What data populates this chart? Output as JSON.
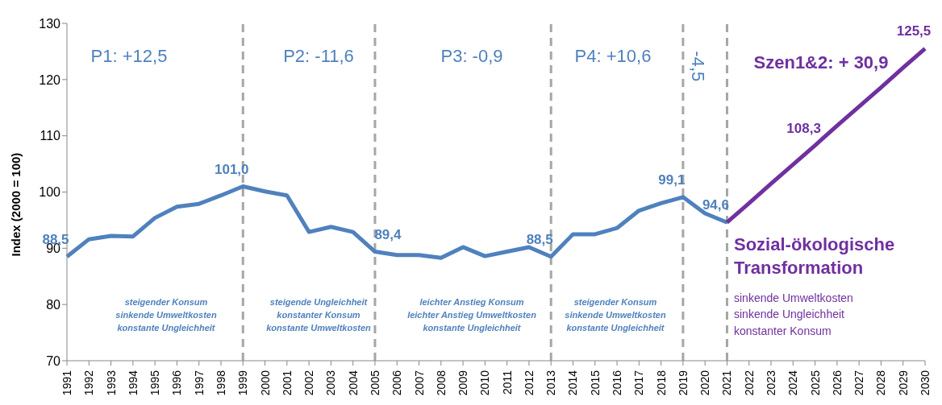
{
  "chart_data": {
    "type": "line",
    "ylabel": "Index (2000 = 100)",
    "categories": [
      "1991",
      "1992",
      "1993",
      "1994",
      "1995",
      "1996",
      "1997",
      "1998",
      "1999",
      "2000",
      "2001",
      "2002",
      "2003",
      "2004",
      "2005",
      "2006",
      "2007",
      "2008",
      "2009",
      "2010",
      "2011",
      "2012",
      "2013",
      "2014",
      "2015",
      "2016",
      "2017",
      "2018",
      "2019",
      "2020",
      "2021",
      "2022",
      "2023",
      "2024",
      "2025",
      "2026",
      "2027",
      "2028",
      "2029",
      "2030"
    ],
    "series": [
      {
        "color": "#4f81bd",
        "values": [
          88.5,
          91.6,
          92.2,
          92.1,
          95.4,
          97.4,
          97.9,
          99.4,
          101.0,
          100.1,
          99.4,
          92.9,
          93.8,
          92.9,
          89.4,
          88.8,
          88.8,
          88.3,
          90.2,
          88.6,
          89.4,
          90.2,
          88.5,
          92.5,
          92.5,
          93.6,
          96.7,
          98.0,
          99.1,
          96.2,
          94.6,
          null,
          null,
          null,
          null,
          null,
          null,
          null,
          null,
          null
        ],
        "value_labels": [
          "88,5",
          null,
          null,
          null,
          null,
          null,
          null,
          null,
          "101,0",
          null,
          null,
          null,
          null,
          null,
          "89,4",
          null,
          null,
          null,
          null,
          null,
          null,
          null,
          "88,5",
          null,
          null,
          null,
          null,
          null,
          "99,1",
          null,
          "94,6",
          null,
          null,
          null,
          null,
          null,
          null,
          null,
          null,
          null
        ]
      },
      {
        "color": "#7030a0",
        "values": [
          null,
          null,
          null,
          null,
          null,
          null,
          null,
          null,
          null,
          null,
          null,
          null,
          null,
          null,
          null,
          null,
          null,
          null,
          null,
          null,
          null,
          null,
          null,
          null,
          null,
          null,
          null,
          null,
          null,
          null,
          94.6,
          98.0,
          101.5,
          104.9,
          108.3,
          111.8,
          115.2,
          118.6,
          122.1,
          125.5
        ],
        "value_labels": [
          null,
          null,
          null,
          null,
          null,
          null,
          null,
          null,
          null,
          null,
          null,
          null,
          null,
          null,
          null,
          null,
          null,
          null,
          null,
          null,
          null,
          null,
          null,
          null,
          null,
          null,
          null,
          null,
          null,
          null,
          null,
          null,
          null,
          null,
          "108,3",
          null,
          null,
          null,
          null,
          "125,5"
        ]
      }
    ],
    "ylim": [
      70,
      130
    ],
    "yticks": [
      70,
      80,
      90,
      100,
      110,
      120,
      130
    ],
    "grid": false,
    "legend": false,
    "marker": "none",
    "line_style": "solid",
    "ref_lines": [
      {
        "axis": "x",
        "value": "1999",
        "color": "#a6a6a6",
        "line_style": "dashed"
      },
      {
        "axis": "x",
        "value": "2005",
        "color": "#a6a6a6",
        "line_style": "dashed"
      },
      {
        "axis": "x",
        "value": "2013",
        "color": "#a6a6a6",
        "line_style": "dashed"
      },
      {
        "axis": "x",
        "value": "2019",
        "color": "#a6a6a6",
        "line_style": "dashed"
      },
      {
        "axis": "x",
        "value": "2021",
        "color": "#a6a6a6",
        "line_style": "dashed"
      }
    ],
    "annotations": [
      "P1: +12,5",
      "P2: -11,6",
      "P3: -0,9",
      "P4: +10,6",
      "-4,5",
      "Szen1&2: + 30,9",
      "steigender Konsum\nsinkende Umweltkosten\nkonstante Ungleichheit",
      "steigende Ungleichheit\nkonstanter Konsum\nkonstante Umweltkosten",
      "leichter Anstieg Konsum\nleichter Anstieg Umweltkosten\nkonstante Ungleichheit",
      "steigender Konsum\nsinkende Umweltkosten\nkonstante Ungleichheit",
      "Sozial-ökologische\nTransformation",
      "sinkende Umweltkosten\nsinkende Ungleichheit\nkonstanter Konsum"
    ]
  }
}
